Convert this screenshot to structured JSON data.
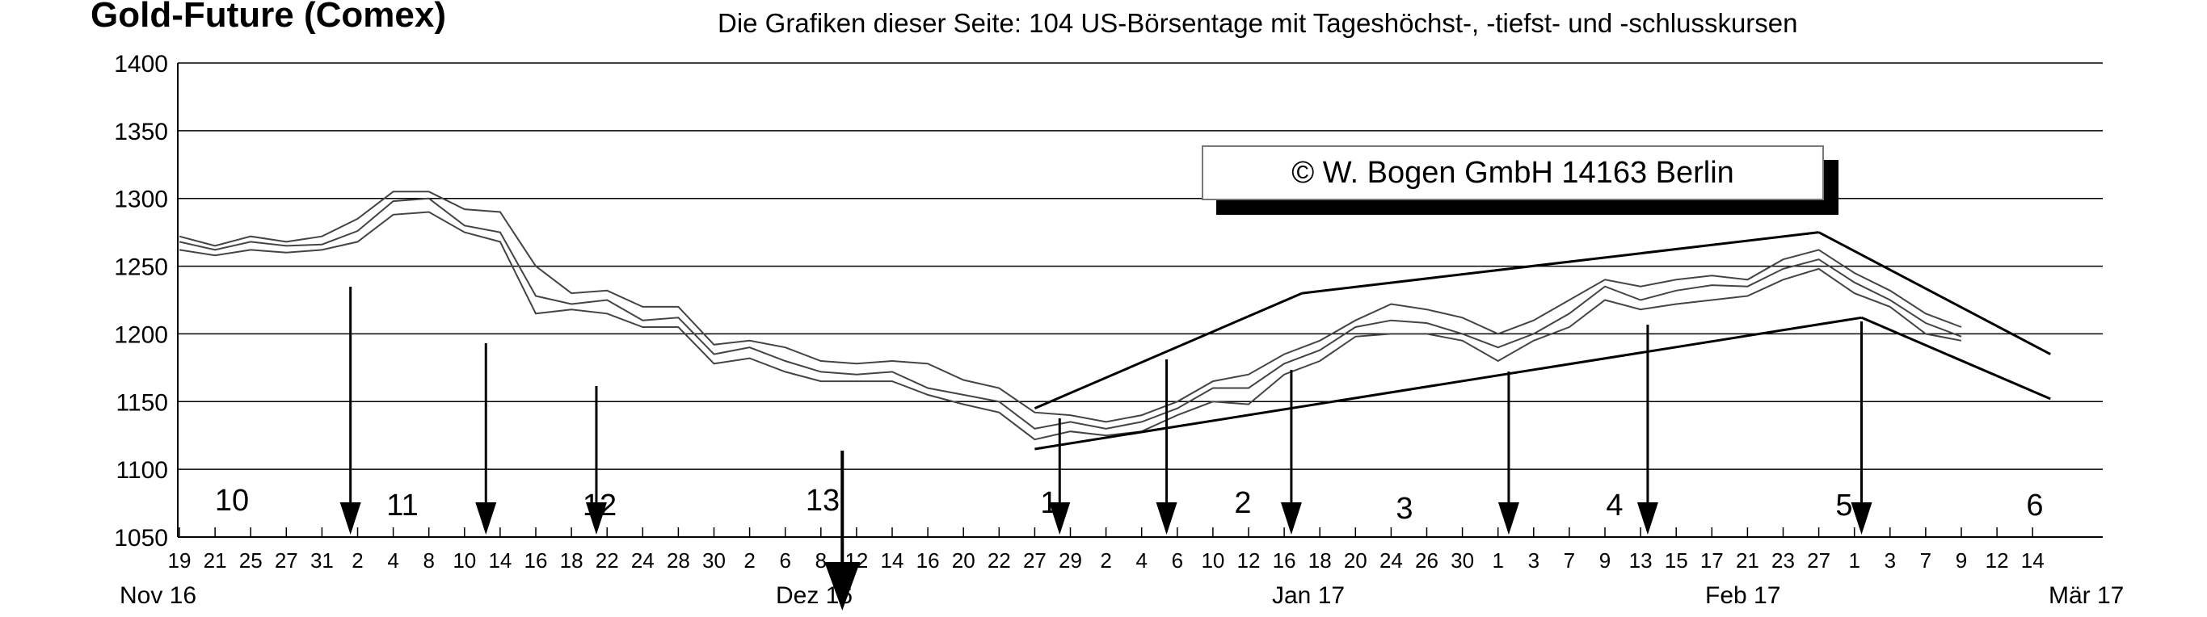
{
  "title": "Gold-Future (Comex)",
  "subtitle": "Die Grafiken dieser Seite: 104 US-Börsentage mit Tageshöchst-, -tiefst- und -schlusskursen",
  "copyright": "©  W. Bogen GmbH 14163 Berlin",
  "chart_data": {
    "type": "line",
    "ylim": [
      1050,
      1400
    ],
    "yticks": [
      1050,
      1100,
      1150,
      1200,
      1250,
      1300,
      1350,
      1400
    ],
    "x_tick_labels": [
      "19",
      "21",
      "25",
      "27",
      "31",
      "2",
      "4",
      "8",
      "10",
      "14",
      "16",
      "18",
      "22",
      "24",
      "28",
      "30",
      "2",
      "6",
      "8",
      "12",
      "14",
      "16",
      "20",
      "22",
      "27",
      "29",
      "2",
      "4",
      "6",
      "10",
      "12",
      "16",
      "18",
      "20",
      "24",
      "26",
      "30",
      "1",
      "3",
      "7",
      "9",
      "13",
      "15",
      "17",
      "21",
      "23",
      "27",
      "1",
      "3",
      "7",
      "9",
      "12",
      "14"
    ],
    "month_labels": [
      "Nov 16",
      "Dez 16",
      "Jan 17",
      "Feb 17",
      "Mär 17"
    ],
    "cycle_labels": [
      "10",
      "11",
      "12",
      "13",
      "1",
      "2",
      "3",
      "4",
      "5",
      "6"
    ],
    "cycle_markers_x_index": [
      4.8,
      8.6,
      11.7,
      18.6,
      24.7,
      27.7,
      31.2,
      37.3,
      41.2,
      47.2
    ],
    "grid": true,
    "legend": "none",
    "series": [
      {
        "values_at_x_index": [
          [
            0,
            1272
          ],
          [
            1,
            1265
          ],
          [
            2,
            1272
          ],
          [
            3,
            1268
          ],
          [
            4,
            1272
          ],
          [
            5,
            1285
          ],
          [
            6,
            1305
          ],
          [
            7,
            1305
          ],
          [
            8,
            1292
          ],
          [
            9,
            1290
          ],
          [
            10,
            1250
          ],
          [
            11,
            1230
          ],
          [
            12,
            1232
          ],
          [
            13,
            1220
          ],
          [
            14,
            1220
          ],
          [
            15,
            1192
          ],
          [
            16,
            1195
          ],
          [
            17,
            1190
          ],
          [
            18,
            1180
          ],
          [
            19,
            1178
          ],
          [
            20,
            1180
          ],
          [
            21,
            1178
          ],
          [
            22,
            1166
          ],
          [
            23,
            1160
          ],
          [
            24,
            1142
          ],
          [
            25,
            1140
          ],
          [
            26,
            1135
          ],
          [
            27,
            1140
          ],
          [
            28,
            1150
          ],
          [
            29,
            1165
          ],
          [
            30,
            1170
          ],
          [
            31,
            1185
          ],
          [
            32,
            1195
          ],
          [
            33,
            1210
          ],
          [
            34,
            1222
          ],
          [
            35,
            1218
          ],
          [
            36,
            1212
          ],
          [
            37,
            1200
          ],
          [
            38,
            1210
          ],
          [
            39,
            1225
          ],
          [
            40,
            1240
          ],
          [
            41,
            1235
          ],
          [
            42,
            1240
          ],
          [
            43,
            1243
          ],
          [
            44,
            1240
          ],
          [
            45,
            1255
          ],
          [
            46,
            1262
          ],
          [
            47,
            1245
          ],
          [
            48,
            1232
          ],
          [
            49,
            1215
          ],
          [
            50,
            1205
          ]
        ]
      },
      {
        "values_at_x_index": [
          [
            0,
            1268
          ],
          [
            1,
            1262
          ],
          [
            2,
            1268
          ],
          [
            3,
            1265
          ],
          [
            4,
            1266
          ],
          [
            5,
            1276
          ],
          [
            6,
            1298
          ],
          [
            7,
            1300
          ],
          [
            8,
            1280
          ],
          [
            9,
            1275
          ],
          [
            10,
            1228
          ],
          [
            11,
            1222
          ],
          [
            12,
            1225
          ],
          [
            13,
            1210
          ],
          [
            14,
            1212
          ],
          [
            15,
            1185
          ],
          [
            16,
            1190
          ],
          [
            17,
            1180
          ],
          [
            18,
            1172
          ],
          [
            19,
            1170
          ],
          [
            20,
            1172
          ],
          [
            21,
            1160
          ],
          [
            22,
            1155
          ],
          [
            23,
            1150
          ],
          [
            24,
            1130
          ],
          [
            25,
            1135
          ],
          [
            26,
            1130
          ],
          [
            27,
            1135
          ],
          [
            28,
            1145
          ],
          [
            29,
            1160
          ],
          [
            30,
            1160
          ],
          [
            31,
            1178
          ],
          [
            32,
            1188
          ],
          [
            33,
            1205
          ],
          [
            34,
            1210
          ],
          [
            35,
            1208
          ],
          [
            36,
            1200
          ],
          [
            37,
            1190
          ],
          [
            38,
            1200
          ],
          [
            39,
            1215
          ],
          [
            40,
            1235
          ],
          [
            41,
            1225
          ],
          [
            42,
            1232
          ],
          [
            43,
            1236
          ],
          [
            44,
            1235
          ],
          [
            45,
            1248
          ],
          [
            46,
            1255
          ],
          [
            47,
            1238
          ],
          [
            48,
            1225
          ],
          [
            49,
            1208
          ],
          [
            50,
            1198
          ]
        ]
      },
      {
        "values_at_x_index": [
          [
            0,
            1262
          ],
          [
            1,
            1258
          ],
          [
            2,
            1262
          ],
          [
            3,
            1260
          ],
          [
            4,
            1262
          ],
          [
            5,
            1268
          ],
          [
            6,
            1288
          ],
          [
            7,
            1290
          ],
          [
            8,
            1275
          ],
          [
            9,
            1268
          ],
          [
            10,
            1215
          ],
          [
            11,
            1218
          ],
          [
            12,
            1215
          ],
          [
            13,
            1205
          ],
          [
            14,
            1205
          ],
          [
            15,
            1178
          ],
          [
            16,
            1182
          ],
          [
            17,
            1172
          ],
          [
            18,
            1165
          ],
          [
            19,
            1165
          ],
          [
            20,
            1165
          ],
          [
            21,
            1155
          ],
          [
            22,
            1148
          ],
          [
            23,
            1142
          ],
          [
            24,
            1122
          ],
          [
            25,
            1128
          ],
          [
            26,
            1125
          ],
          [
            27,
            1128
          ],
          [
            28,
            1140
          ],
          [
            29,
            1150
          ],
          [
            30,
            1148
          ],
          [
            31,
            1170
          ],
          [
            32,
            1180
          ],
          [
            33,
            1198
          ],
          [
            34,
            1200
          ],
          [
            35,
            1200
          ],
          [
            36,
            1195
          ],
          [
            37,
            1180
          ],
          [
            38,
            1195
          ],
          [
            39,
            1205
          ],
          [
            40,
            1225
          ],
          [
            41,
            1218
          ],
          [
            42,
            1222
          ],
          [
            43,
            1225
          ],
          [
            44,
            1228
          ],
          [
            45,
            1240
          ],
          [
            46,
            1248
          ],
          [
            47,
            1230
          ],
          [
            48,
            1220
          ],
          [
            49,
            1200
          ],
          [
            50,
            1195
          ]
        ]
      }
    ],
    "trend_lines": [
      {
        "from": [
          24.0,
          1145
        ],
        "to": [
          31.5,
          1230
        ]
      },
      {
        "from": [
          31.5,
          1230
        ],
        "to": [
          46.0,
          1275
        ]
      },
      {
        "from": [
          24.0,
          1115
        ],
        "to": [
          47.2,
          1212
        ]
      },
      {
        "from": [
          46.0,
          1275
        ],
        "to": [
          52.5,
          1185
        ]
      },
      {
        "from": [
          47.2,
          1212
        ],
        "to": [
          52.5,
          1152
        ]
      }
    ]
  }
}
